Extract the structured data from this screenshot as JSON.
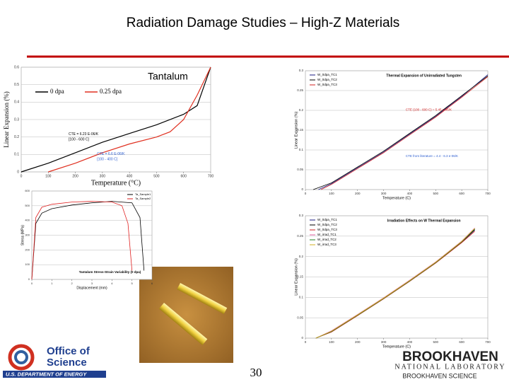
{
  "header": {
    "title": "Radiation Damage Studies – High-Z Materials"
  },
  "plots": [
    {
      "type": "line",
      "title": "Tantalum",
      "xlabel": "Temperature (°C)",
      "ylabel": "Linear Expansion (%)",
      "xlim": [
        0,
        700
      ],
      "ylim": [
        0,
        0.6
      ],
      "xticks": [
        0,
        100,
        200,
        300,
        400,
        500,
        600,
        700
      ],
      "yticks": [
        0,
        0.1,
        0.2,
        0.3,
        0.4,
        0.5,
        0.6
      ],
      "legend": "top-horizontal",
      "series": [
        {
          "name": "0 dpa",
          "color": "#000000",
          "x": [
            0,
            100,
            200,
            300,
            400,
            500,
            600,
            650,
            700
          ],
          "values": [
            0,
            0.05,
            0.11,
            0.17,
            0.22,
            0.27,
            0.33,
            0.38,
            0.6
          ]
        },
        {
          "name": "0.25 dpa",
          "color": "#e03020",
          "x": [
            100,
            200,
            300,
            400,
            500,
            550,
            600,
            650,
            700
          ],
          "values": [
            0,
            0.05,
            0.11,
            0.16,
            0.2,
            0.23,
            0.3,
            0.44,
            0.6
          ]
        }
      ],
      "annotations": [
        {
          "text": "CTE = 6.23 E-06/K",
          "color": "#000000"
        },
        {
          "text": "[100 - 600 C]",
          "color": "#000000"
        },
        {
          "text": "CTE = 6.6 E-06/K",
          "color": "#3060d0"
        },
        {
          "text": "[100 - 400 C]",
          "color": "#3060d0"
        }
      ]
    },
    {
      "type": "line",
      "title": "Thermal Expansion of Unirradiated Tungsten",
      "xlabel": "Temperature (C)",
      "ylabel": "Linear Expansion (%)",
      "xlim": [
        0,
        700
      ],
      "ylim": [
        0,
        0.3
      ],
      "xticks": [
        0,
        100,
        200,
        300,
        400,
        500,
        600,
        700
      ],
      "yticks": [
        0,
        0.05,
        0.1,
        0.15,
        0.2,
        0.25,
        0.3
      ],
      "legend": "top-left",
      "series": [
        {
          "name": "W_0dpa_TC1",
          "color": "#1a1a80",
          "x": [
            50,
            100,
            200,
            300,
            400,
            500,
            600,
            700
          ],
          "values": [
            0,
            0.015,
            0.055,
            0.095,
            0.14,
            0.185,
            0.235,
            0.29
          ]
        },
        {
          "name": "W_0dpa_TC2",
          "color": "#000000",
          "x": [
            30,
            100,
            200,
            300,
            400,
            500,
            600,
            700
          ],
          "values": [
            0,
            0.017,
            0.057,
            0.097,
            0.142,
            0.187,
            0.237,
            0.287
          ]
        },
        {
          "name": "W_0dpa_TC3",
          "color": "#d02020",
          "x": [
            60,
            100,
            200,
            300,
            400,
            500,
            600,
            700
          ],
          "values": [
            0,
            0.013,
            0.053,
            0.093,
            0.138,
            0.183,
            0.233,
            0.285
          ]
        }
      ],
      "annotations": [
        {
          "text": "CTE (100 - 600 C) = 5.45 e-06/K",
          "color": "#d02020"
        },
        {
          "text": "CTE from literature = 4.4 - 6.3 e-06/K",
          "color": "#3060d0"
        }
      ]
    },
    {
      "type": "line",
      "title": "Tantalum Stress-Strain Variability (0 dpa)",
      "xlabel": "Displacement (mm)",
      "ylabel": "Stress (MPa)",
      "xlim": [
        0,
        6
      ],
      "ylim": [
        0,
        600
      ],
      "xticks": [
        0,
        1,
        2,
        3,
        4,
        5,
        6
      ],
      "yticks": [
        0,
        100,
        200,
        300,
        400,
        500,
        600
      ],
      "legend": "top-right",
      "series": [
        {
          "name": "Ta_Sample1",
          "color": "#000000",
          "x": [
            0,
            0.2,
            0.5,
            1,
            2,
            3,
            4,
            5,
            5.4,
            5.6
          ],
          "values": [
            0,
            380,
            450,
            480,
            505,
            520,
            530,
            520,
            420,
            60
          ]
        },
        {
          "name": "Ta_Sample2",
          "color": "#e02020",
          "x": [
            0,
            0.2,
            0.5,
            1,
            2,
            3,
            4,
            4.5,
            4.8,
            5
          ],
          "values": [
            0,
            420,
            490,
            510,
            525,
            530,
            525,
            500,
            380,
            60
          ]
        }
      ],
      "annotations": []
    },
    {
      "type": "line",
      "title": "Irradiation Effects on W Thermal Expansion",
      "xlabel": "Temperature (C)",
      "ylabel": "Linear Expansion (%)",
      "xlim": [
        0,
        700
      ],
      "ylim": [
        0,
        0.3
      ],
      "xticks": [
        0,
        100,
        200,
        300,
        400,
        500,
        600,
        700
      ],
      "yticks": [
        0,
        0.05,
        0.1,
        0.15,
        0.2,
        0.25,
        0.3
      ],
      "legend": "top-left",
      "series": [
        {
          "name": "W_0dpa_TC1",
          "color": "#1a1a80",
          "x": [
            40,
            100,
            200,
            300,
            400,
            500,
            600,
            650
          ],
          "values": [
            0,
            0.016,
            0.056,
            0.097,
            0.14,
            0.185,
            0.235,
            0.265
          ]
        },
        {
          "name": "W_0dpa_TC2",
          "color": "#000000",
          "x": [
            40,
            100,
            200,
            300,
            400,
            500,
            600,
            650
          ],
          "values": [
            0,
            0.017,
            0.057,
            0.098,
            0.141,
            0.186,
            0.236,
            0.266
          ]
        },
        {
          "name": "W_0dpa_TC3",
          "color": "#d02020",
          "x": [
            40,
            100,
            200,
            300,
            400,
            500,
            600,
            650
          ],
          "values": [
            0,
            0.015,
            0.055,
            0.096,
            0.139,
            0.184,
            0.234,
            0.262
          ]
        },
        {
          "name": "W_irrad_TC1",
          "color": "#e060a0",
          "x": [
            40,
            100,
            200,
            300,
            400,
            500,
            600,
            650
          ],
          "values": [
            0,
            0.018,
            0.058,
            0.099,
            0.142,
            0.187,
            0.238,
            0.27
          ]
        },
        {
          "name": "W_irrad_TC2",
          "color": "#208020",
          "x": [
            40,
            100,
            200,
            300,
            400,
            500,
            600,
            650
          ],
          "values": [
            0,
            0.016,
            0.056,
            0.097,
            0.14,
            0.185,
            0.236,
            0.268
          ]
        },
        {
          "name": "W_irrad_TC3",
          "color": "#d0b020",
          "x": [
            40,
            100,
            200,
            300,
            400,
            500,
            600,
            650
          ],
          "values": [
            0,
            0.017,
            0.057,
            0.098,
            0.141,
            0.186,
            0.237,
            0.269
          ]
        }
      ],
      "annotations": []
    }
  ],
  "footer": {
    "office": "Office of",
    "science": "Science",
    "doe": "U.S. DEPARTMENT OF ENERGY",
    "page": "30",
    "lab": "BROOKHAVEN",
    "lab_sub": "NATIONAL LABORATORY",
    "associates": "BROOKHAVEN SCIENCE"
  }
}
